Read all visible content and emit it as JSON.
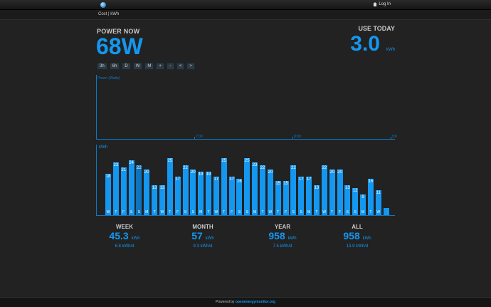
{
  "topbar": {
    "login_label": "Log In"
  },
  "subnav": {
    "crumb": "Cost | kWh"
  },
  "power_now": {
    "title": "POWER NOW",
    "value": "68W"
  },
  "use_today": {
    "title": "USE TODAY",
    "value": "3.0",
    "unit": "kWh"
  },
  "buttons": [
    "3h",
    "6h",
    "D",
    "W",
    "M",
    "+",
    "-",
    "<",
    ">"
  ],
  "power_chart": {
    "axis_label": "Power (Watts)",
    "ticks": [
      "7:00",
      "8:00",
      "9:0"
    ]
  },
  "chart_data": {
    "type": "bar",
    "ylabel": "kWh",
    "categories": [
      "W",
      "T",
      "F",
      "S",
      "S",
      "M",
      "T",
      "W",
      "T",
      "F",
      "S",
      "S",
      "M",
      "T",
      "W",
      "T",
      "F",
      "S",
      "S",
      "M",
      "T",
      "W",
      "T",
      "F",
      "S",
      "S",
      "M",
      "T",
      "W",
      "T",
      "F",
      "S",
      "S",
      "M",
      "T",
      "W",
      ""
    ],
    "values": [
      18,
      23,
      21,
      24,
      22,
      20,
      13,
      13,
      25,
      17,
      22,
      20,
      19,
      19,
      17,
      25,
      17,
      16,
      25,
      23,
      22,
      20,
      15,
      15,
      22,
      17,
      17,
      13,
      22,
      20,
      20,
      13,
      12,
      9,
      16,
      11,
      3
    ],
    "value_labels": [
      "18",
      "23",
      "21",
      "24",
      "22",
      "20",
      "13",
      "13",
      "25",
      "17",
      "22",
      "20",
      "19",
      "19",
      "17",
      "25",
      "17",
      "16",
      "25",
      "23",
      "22",
      "20",
      "15",
      "15",
      "22",
      "17",
      "17",
      "13",
      "22",
      "20",
      "20",
      "13",
      "12",
      "9",
      "16",
      "11",
      ""
    ],
    "ylim": [
      0,
      30
    ],
    "colors": {
      "primary": "#1497f0",
      "secondary": "#0d74bf"
    }
  },
  "stats": [
    {
      "label": "WEEK",
      "value": "45.3",
      "unit": "kWh",
      "sub": "6.8 kWh/d"
    },
    {
      "label": "MONTH",
      "value": "57",
      "unit": "kWh",
      "sub": "9.3 kWh/d"
    },
    {
      "label": "YEAR",
      "value": "958",
      "unit": "kWh",
      "sub": "7.5 kWh/d"
    },
    {
      "label": "ALL",
      "value": "958",
      "unit": "kWh",
      "sub": "13.9 kWh/d"
    }
  ],
  "footer": {
    "prefix": "Powered by ",
    "link": "openenergymonitor.org"
  }
}
